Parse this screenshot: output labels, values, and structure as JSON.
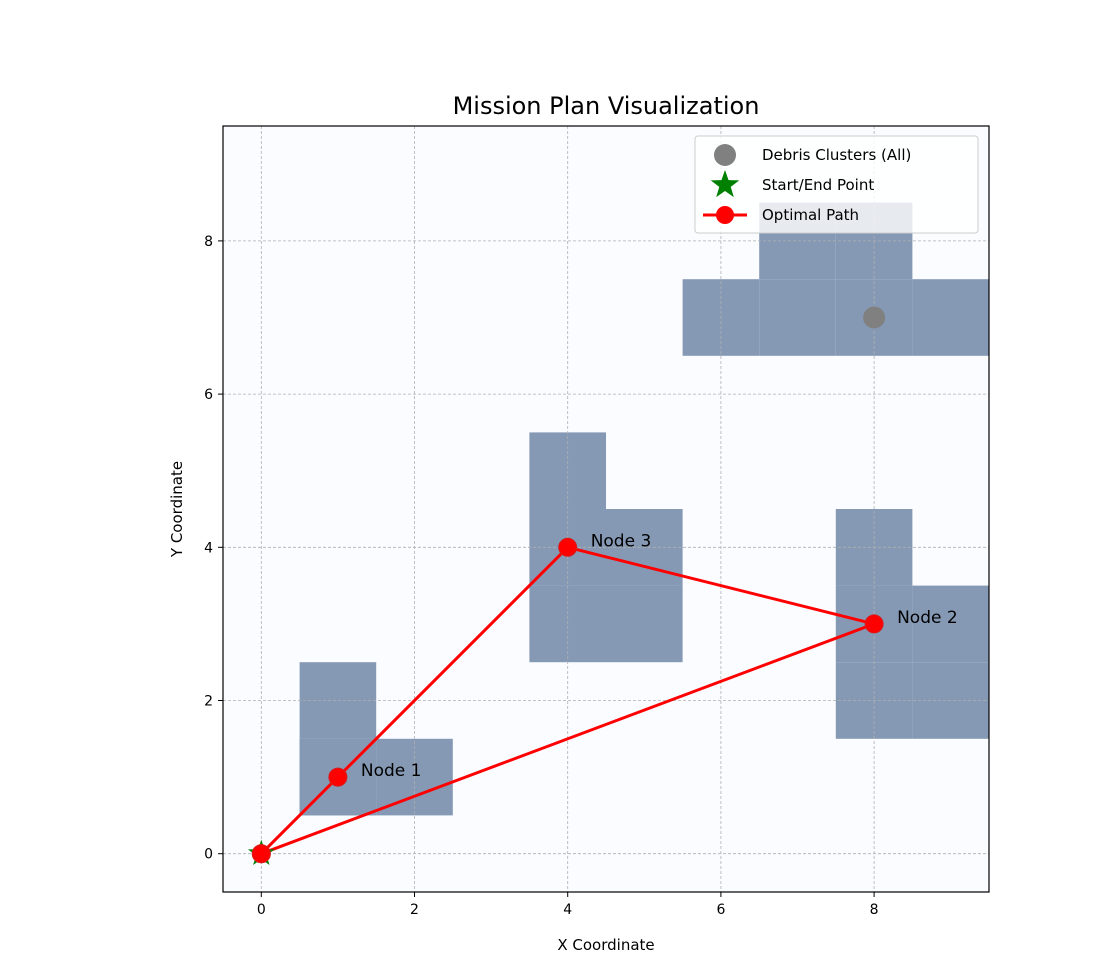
{
  "chart_data": {
    "type": "scatter",
    "title": "Mission Plan Visualization",
    "xlabel": "X Coordinate",
    "ylabel": "Y Coordinate",
    "xlim": [
      -0.5,
      9.5
    ],
    "ylim": [
      -0.5,
      9.5
    ],
    "xticks": [
      0,
      2,
      4,
      6,
      8
    ],
    "yticks": [
      0,
      2,
      4,
      6,
      8
    ],
    "grid": true,
    "legend_position": "top-right",
    "colors": {
      "background": "#fafcff",
      "cluster_fill": "#8599b5",
      "debris_point": "#808080",
      "start_marker": "#008000",
      "path": "#ff0000",
      "grid": "#b0b0b0"
    },
    "cell_size": 1,
    "debris_regions": [
      {
        "cells": [
          [
            1,
            2
          ],
          [
            1,
            1
          ],
          [
            2,
            1
          ],
          [
            1,
            1
          ]
        ]
      },
      {
        "cells": [
          [
            4,
            5
          ],
          [
            4,
            4
          ],
          [
            5,
            4
          ],
          [
            4,
            3
          ],
          [
            5,
            3
          ]
        ]
      },
      {
        "cells": [
          [
            8,
            4
          ],
          [
            8,
            3
          ],
          [
            9,
            3
          ],
          [
            8,
            2
          ],
          [
            9,
            2
          ]
        ]
      },
      {
        "cells": [
          [
            7,
            8
          ],
          [
            8,
            8
          ],
          [
            6,
            7
          ],
          [
            7,
            7
          ],
          [
            8,
            7
          ],
          [
            9,
            7
          ]
        ]
      }
    ],
    "debris_points": [
      {
        "x": 8,
        "y": 7
      }
    ],
    "start_end_point": {
      "x": 0,
      "y": 0
    },
    "path": [
      {
        "x": 0,
        "y": 0
      },
      {
        "x": 1,
        "y": 1
      },
      {
        "x": 4,
        "y": 4
      },
      {
        "x": 8,
        "y": 3
      },
      {
        "x": 0,
        "y": 0
      }
    ],
    "nodes": [
      {
        "label": "Node 1",
        "x": 1,
        "y": 1
      },
      {
        "label": "Node 3",
        "x": 4,
        "y": 4
      },
      {
        "label": "Node 2",
        "x": 8,
        "y": 3
      }
    ],
    "legend": [
      {
        "label": "Debris Clusters (All)",
        "marker": "circle"
      },
      {
        "label": "Start/End Point",
        "marker": "star"
      },
      {
        "label": "Optimal Path",
        "marker": "line-circle"
      }
    ]
  }
}
